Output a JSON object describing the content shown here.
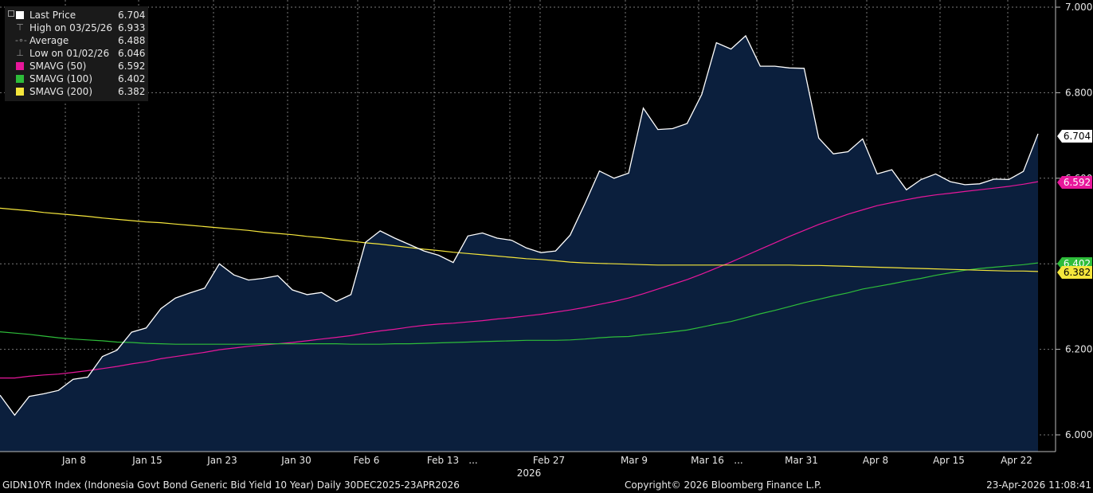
{
  "legend": [
    {
      "label": "Last Price",
      "value": "6.704",
      "marker": "square",
      "color": "#ffffff"
    },
    {
      "label": "High on 03/25/26",
      "value": "6.933",
      "marker": "high-icon",
      "color": "#9a9a9a"
    },
    {
      "label": "Average",
      "value": "6.488",
      "marker": "average-icon",
      "color": "#9a9a9a"
    },
    {
      "label": "Low on 01/02/26",
      "value": "6.046",
      "marker": "low-icon",
      "color": "#9a9a9a"
    },
    {
      "label": "SMAVG (50)",
      "value": "6.592",
      "marker": "square",
      "color": "#e8179b"
    },
    {
      "label": "SMAVG (100)",
      "value": "6.402",
      "marker": "square",
      "color": "#2ebd3a"
    },
    {
      "label": "SMAVG (200)",
      "value": "6.382",
      "marker": "square",
      "color": "#f5e63c"
    }
  ],
  "footer": {
    "left": "GIDN10YR Index (Indonesia Govt Bond Generic Bid Yield 10 Year) Daily 30DEC2025-23APR2026",
    "center": "Copyright© 2026 Bloomberg Finance L.P.",
    "right": "23-Apr-2026 11:08:41"
  },
  "chart_data": {
    "type": "area",
    "ylim": [
      5.97,
      7.01
    ],
    "y_ticks": [
      "6.000",
      "6.200",
      "6.400",
      "6.600",
      "6.800",
      "7.000"
    ],
    "x_tick_labels": [
      "Jan 8",
      "Jan 15",
      "Jan 23",
      "Jan 30",
      "Feb 6",
      "Feb 13",
      "...",
      "Feb 27",
      "Mar 9",
      "Mar 16",
      "...",
      "Mar 31",
      "Apr 8",
      "Apr 15",
      "Apr 22"
    ],
    "year_label": "2026",
    "grid": true,
    "legend_position": "top-left",
    "series": [
      {
        "name": "Last Price",
        "color": "#ffffff",
        "fill": "#0b1f3d",
        "values": [
          6.093,
          6.046,
          6.09,
          6.096,
          6.104,
          6.13,
          6.135,
          6.183,
          6.198,
          6.24,
          6.25,
          6.295,
          6.32,
          6.332,
          6.343,
          6.4,
          6.374,
          6.362,
          6.366,
          6.372,
          6.339,
          6.328,
          6.333,
          6.312,
          6.328,
          6.45,
          6.477,
          6.46,
          6.445,
          6.43,
          6.42,
          6.403,
          6.465,
          6.472,
          6.46,
          6.455,
          6.437,
          6.426,
          6.43,
          6.467,
          6.54,
          6.617,
          6.6,
          6.612,
          6.764,
          6.714,
          6.716,
          6.728,
          6.796,
          6.917,
          6.902,
          6.933,
          6.862,
          6.862,
          6.858,
          6.857,
          6.694,
          6.657,
          6.662,
          6.692,
          6.61,
          6.62,
          6.573,
          6.597,
          6.61,
          6.592,
          6.585,
          6.587,
          6.598,
          6.597,
          6.616,
          6.704
        ]
      },
      {
        "name": "SMAVG (50)",
        "color": "#e8179b",
        "values": [
          6.133,
          6.133,
          6.137,
          6.14,
          6.142,
          6.146,
          6.15,
          6.155,
          6.16,
          6.166,
          6.171,
          6.178,
          6.183,
          6.188,
          6.193,
          6.199,
          6.203,
          6.207,
          6.21,
          6.213,
          6.216,
          6.22,
          6.224,
          6.228,
          6.232,
          6.238,
          6.243,
          6.247,
          6.252,
          6.256,
          6.259,
          6.261,
          6.264,
          6.267,
          6.271,
          6.274,
          6.278,
          6.282,
          6.287,
          6.292,
          6.298,
          6.305,
          6.312,
          6.32,
          6.33,
          6.341,
          6.352,
          6.363,
          6.376,
          6.39,
          6.404,
          6.419,
          6.434,
          6.449,
          6.464,
          6.478,
          6.492,
          6.504,
          6.516,
          6.526,
          6.536,
          6.543,
          6.55,
          6.556,
          6.561,
          6.565,
          6.569,
          6.573,
          6.577,
          6.581,
          6.586,
          6.592
        ]
      },
      {
        "name": "SMAVG (100)",
        "color": "#2ebd3a",
        "values": [
          6.241,
          6.238,
          6.235,
          6.231,
          6.227,
          6.224,
          6.222,
          6.22,
          6.217,
          6.216,
          6.214,
          6.213,
          6.212,
          6.212,
          6.212,
          6.212,
          6.212,
          6.212,
          6.213,
          6.213,
          6.213,
          6.213,
          6.213,
          6.213,
          6.212,
          6.212,
          6.212,
          6.213,
          6.213,
          6.214,
          6.215,
          6.216,
          6.217,
          6.218,
          6.219,
          6.22,
          6.221,
          6.221,
          6.221,
          6.222,
          6.224,
          6.227,
          6.229,
          6.23,
          6.234,
          6.237,
          6.241,
          6.245,
          6.252,
          6.259,
          6.265,
          6.274,
          6.283,
          6.291,
          6.3,
          6.309,
          6.317,
          6.325,
          6.332,
          6.341,
          6.347,
          6.353,
          6.36,
          6.366,
          6.373,
          6.379,
          6.385,
          6.389,
          6.392,
          6.395,
          6.398,
          6.402
        ]
      },
      {
        "name": "SMAVG (200)",
        "color": "#f5e63c",
        "values": [
          6.53,
          6.527,
          6.524,
          6.52,
          6.517,
          6.514,
          6.511,
          6.507,
          6.504,
          6.501,
          6.498,
          6.496,
          6.493,
          6.49,
          6.487,
          6.484,
          6.481,
          6.478,
          6.474,
          6.471,
          6.468,
          6.464,
          6.461,
          6.457,
          6.453,
          6.449,
          6.446,
          6.442,
          6.438,
          6.434,
          6.431,
          6.427,
          6.424,
          6.421,
          6.418,
          6.415,
          6.412,
          6.41,
          6.407,
          6.404,
          6.402,
          6.401,
          6.4,
          6.399,
          6.398,
          6.397,
          6.397,
          6.397,
          6.397,
          6.397,
          6.397,
          6.397,
          6.397,
          6.397,
          6.397,
          6.396,
          6.396,
          6.395,
          6.394,
          6.393,
          6.392,
          6.391,
          6.39,
          6.389,
          6.388,
          6.387,
          6.386,
          6.385,
          6.384,
          6.383,
          6.383,
          6.382
        ]
      }
    ],
    "price_labels": [
      {
        "text": "6.704",
        "value": 6.704,
        "bg": "#ffffff",
        "fg": "#000000"
      },
      {
        "text": "6.592",
        "value": 6.592,
        "bg": "#e8179b",
        "fg": "#ffffff"
      },
      {
        "text": "6.402",
        "value": 6.402,
        "bg": "#2ebd3a",
        "fg": "#ffffff"
      },
      {
        "text": "6.382",
        "value": 6.382,
        "bg": "#f5e63c",
        "fg": "#000000"
      }
    ]
  }
}
